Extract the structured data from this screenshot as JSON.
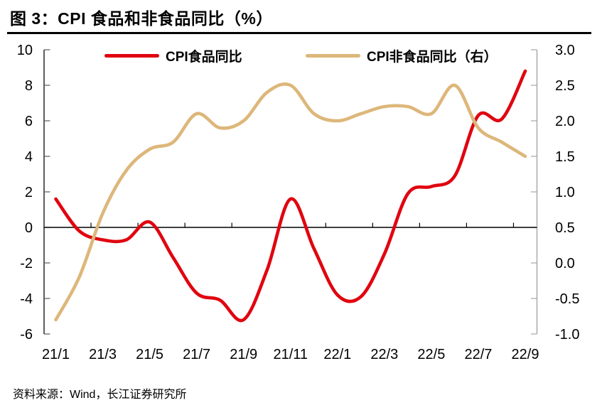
{
  "header": {
    "title": "图 3：CPI 食品和非食品同比（%）"
  },
  "footer": {
    "source": "资料来源：Wind，长江证券研究所"
  },
  "legend": [
    {
      "label": "CPI食品同比",
      "color": "#e0050f"
    },
    {
      "label": "CPI非食品同比（右）",
      "color": "#ddb77a"
    }
  ],
  "colors": {
    "left_axis": "#1a1a1a",
    "right_axis": "#a6a6a6",
    "zero_line": "#000000",
    "tick": "#595959",
    "text": "#000000"
  },
  "chart_data": {
    "type": "line",
    "title": "CPI 食品和非食品同比（%）",
    "legend_position": "top",
    "grid": false,
    "smooth": true,
    "categories": [
      "21/1",
      "21/2",
      "21/3",
      "21/4",
      "21/5",
      "21/6",
      "21/7",
      "21/8",
      "21/9",
      "21/10",
      "21/11",
      "21/12",
      "22/1",
      "22/2",
      "22/3",
      "22/4",
      "22/5",
      "22/6",
      "22/7",
      "22/8",
      "22/9"
    ],
    "x_tick_labels": [
      "21/1",
      "21/3",
      "21/5",
      "21/7",
      "21/9",
      "21/11",
      "22/1",
      "22/3",
      "22/5",
      "22/7",
      "22/9"
    ],
    "series": [
      {
        "name": "CPI食品同比",
        "axis": "left",
        "color": "#e0050f",
        "values": [
          1.6,
          -0.2,
          -0.7,
          -0.7,
          0.3,
          -1.7,
          -3.7,
          -4.1,
          -5.2,
          -2.4,
          1.6,
          -1.2,
          -3.8,
          -3.9,
          -1.5,
          1.9,
          2.3,
          2.9,
          6.3,
          6.1,
          8.8
        ]
      },
      {
        "name": "CPI非食品同比（右）",
        "axis": "right",
        "color": "#ddb77a",
        "values": [
          -0.8,
          -0.2,
          0.7,
          1.3,
          1.6,
          1.7,
          2.1,
          1.9,
          2.0,
          2.4,
          2.5,
          2.1,
          2.0,
          2.1,
          2.2,
          2.2,
          2.1,
          2.5,
          1.9,
          1.7,
          1.5
        ]
      }
    ],
    "left_axis": {
      "min": -6,
      "max": 10,
      "ticks": [
        "10",
        "8",
        "6",
        "4",
        "2",
        "0",
        "-2",
        "-4",
        "-6"
      ]
    },
    "right_axis": {
      "min": -1,
      "max": 3,
      "ticks": [
        "3.0",
        "2.5",
        "2.0",
        "1.5",
        "1.0",
        "0.5",
        "0.0",
        "-0.5",
        "-1.0"
      ]
    }
  }
}
